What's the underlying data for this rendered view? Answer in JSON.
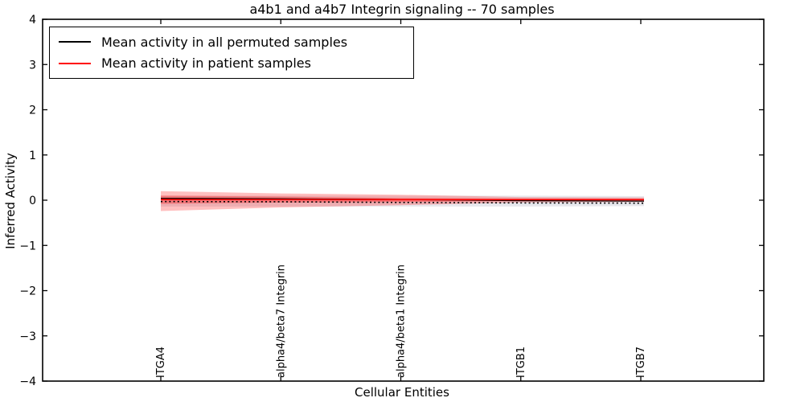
{
  "figure": {
    "background": "#ffffff",
    "axes_color": "#000000"
  },
  "chart_data": {
    "type": "line",
    "title": "a4b1 and a4b7 Integrin signaling -- 70 samples",
    "xlabel": "Cellular Entities",
    "ylabel": "Inferred Activity",
    "ylim": [
      -4,
      4
    ],
    "yticks": [
      4,
      3,
      2,
      1,
      0,
      -1,
      -2,
      -3,
      -4
    ],
    "ytick_labels": [
      "4",
      "3",
      "2",
      "1",
      "0",
      "−1",
      "−2",
      "−3",
      "−4"
    ],
    "grid": false,
    "categories": [
      "ITGA4",
      "alpha4/beta7 Integrin",
      "alpha4/beta1 Integrin",
      "ITGB1",
      "ITGB7"
    ],
    "legend": {
      "position": "upper-left",
      "entries": [
        {
          "label": "Mean activity in all permuted samples",
          "color": "#000000"
        },
        {
          "label": "Mean activity in patient samples",
          "color": "#ff0000"
        }
      ]
    },
    "series": [
      {
        "name": "baseline-dotted",
        "color": "#000000",
        "style": "dotted",
        "width": 1.6,
        "values": [
          -0.03,
          -0.035,
          -0.05,
          -0.06,
          -0.065
        ]
      },
      {
        "name": "mean-permuted",
        "color": "#000000",
        "style": "solid",
        "width": 1.3,
        "values": [
          0.04,
          0.03,
          0.015,
          -0.01,
          -0.02
        ]
      },
      {
        "name": "mean-patient",
        "color": "#ff0000",
        "style": "solid",
        "width": 1.6,
        "values": [
          0.015,
          0.015,
          0.012,
          0.012,
          0.012
        ]
      }
    ],
    "bands": [
      {
        "name": "permuted-std-band",
        "color": "#787896",
        "opacity": 0.18,
        "upper": [
          0.1,
          0.1,
          0.1,
          0.1,
          0.09
        ],
        "lower": [
          -0.14,
          -0.14,
          -0.14,
          -0.14,
          -0.13
        ]
      },
      {
        "name": "patient-std-band-outer",
        "color": "#ff0000",
        "opacity": 0.25,
        "upper": [
          0.2,
          0.15,
          0.12,
          0.07,
          0.06
        ],
        "lower": [
          -0.24,
          -0.16,
          -0.11,
          -0.05,
          -0.04
        ]
      },
      {
        "name": "patient-std-band-inner",
        "color": "#ff0000",
        "opacity": 0.3,
        "upper": [
          0.1,
          0.08,
          0.05,
          0.035,
          0.03
        ],
        "lower": [
          -0.08,
          -0.05,
          -0.04,
          -0.015,
          -0.01
        ]
      }
    ]
  }
}
